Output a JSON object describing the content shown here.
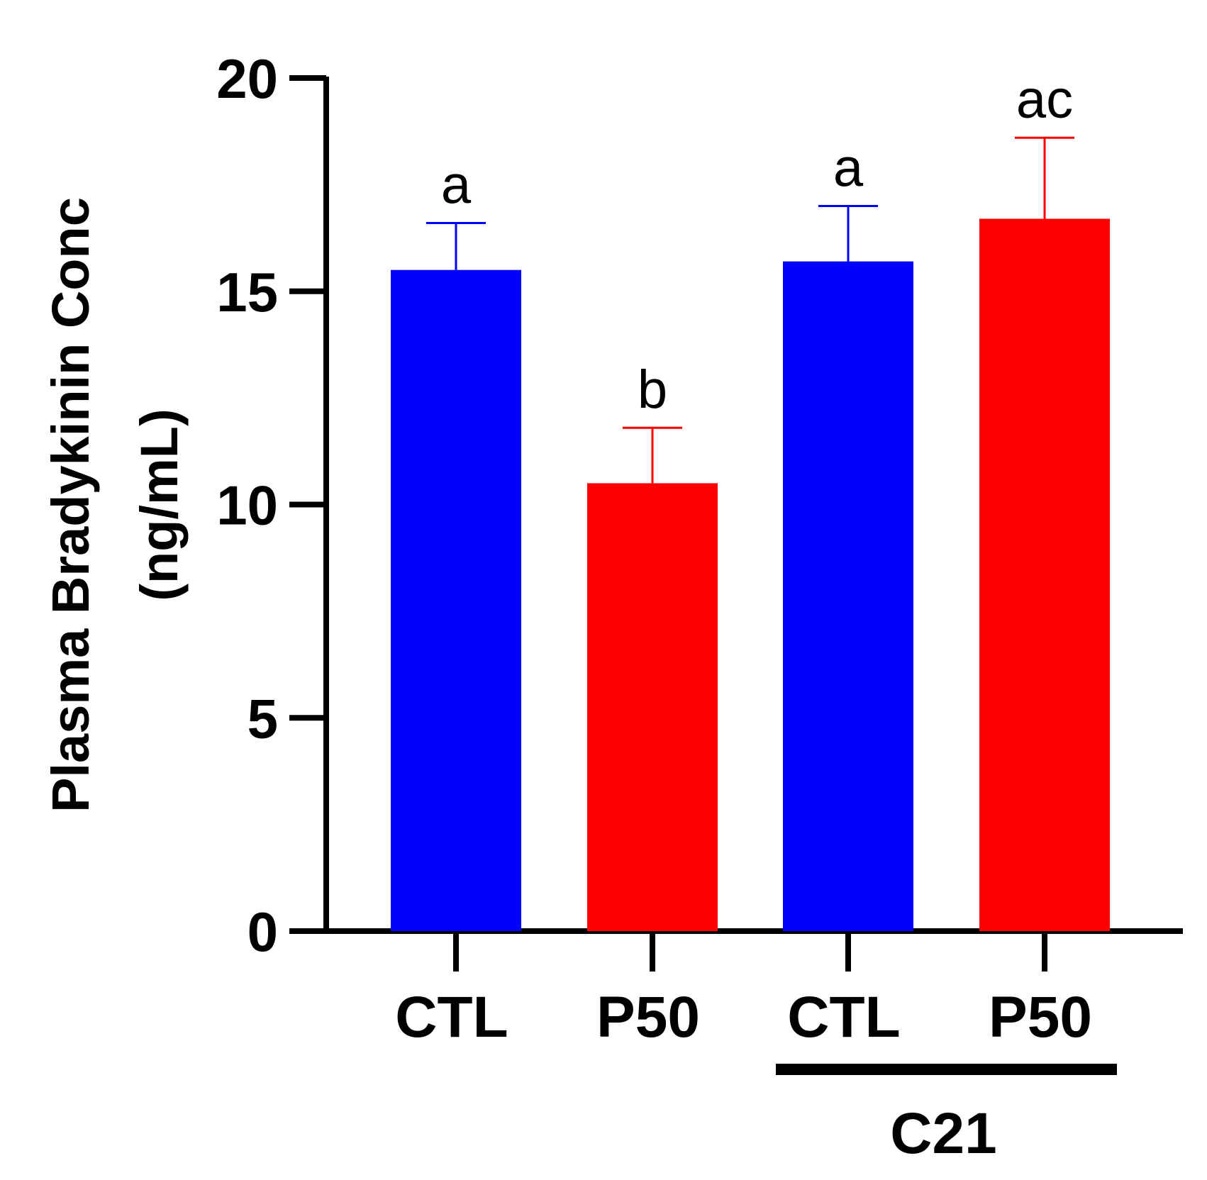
{
  "chart_data": {
    "type": "bar",
    "ylabel_line1": "Plasma Bradykinin Conc",
    "ylabel_line2": "(ng/mL)",
    "ylim": [
      0,
      20
    ],
    "yticks": [
      "0",
      "5",
      "10",
      "15",
      "20"
    ],
    "grid": false,
    "legend": "none",
    "categories": [
      "CTL",
      "P50",
      "CTL",
      "P50"
    ],
    "values": [
      15.5,
      10.5,
      15.7,
      16.7
    ],
    "errors": [
      1.1,
      1.3,
      1.3,
      1.9
    ],
    "significance": [
      "a",
      "b",
      "a",
      "ac"
    ],
    "colors": [
      "#0000ff",
      "#ff0000",
      "#0000ff",
      "#ff0000"
    ],
    "group": {
      "label": "C21",
      "categories": [
        2,
        3
      ]
    }
  }
}
